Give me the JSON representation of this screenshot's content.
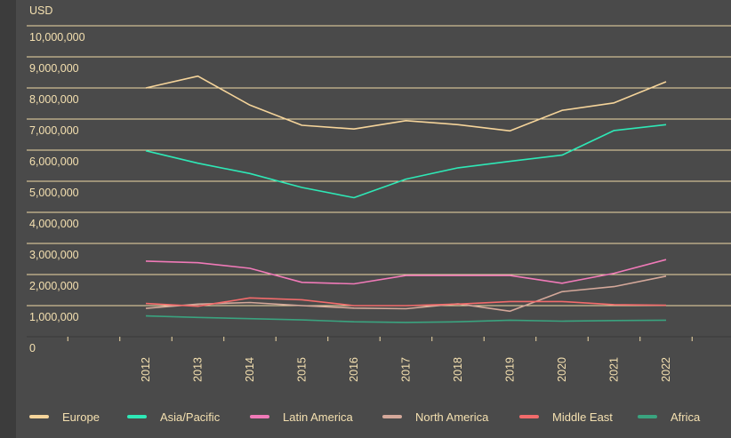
{
  "chart_data": {
    "type": "line",
    "unit_label": "USD",
    "x": [
      "2012",
      "2013",
      "2014",
      "2015",
      "2016",
      "2017",
      "2018",
      "2019",
      "2020",
      "2021",
      "2022"
    ],
    "y_ticks": [
      "0",
      "1,000,000",
      "2,000,000",
      "3,000,000",
      "4,000,000",
      "5,000,000",
      "6,000,000",
      "7,000,000",
      "8,000,000",
      "9,000,000",
      "10,000,000"
    ],
    "ylim": [
      0,
      10000000
    ],
    "grid": true,
    "legend_position": "bottom",
    "series": [
      {
        "name": "Europe",
        "color": "#f5d49a",
        "values": [
          8000000,
          8380000,
          7450000,
          6800000,
          6680000,
          6950000,
          6820000,
          6620000,
          7280000,
          7520000,
          8200000
        ]
      },
      {
        "name": "Asia/Pacific",
        "color": "#2ee8b6",
        "values": [
          5980000,
          5580000,
          5250000,
          4800000,
          4470000,
          5070000,
          5430000,
          5640000,
          5840000,
          6630000,
          6820000
        ]
      },
      {
        "name": "Latin America",
        "color": "#f07ab8",
        "values": [
          2430000,
          2380000,
          2200000,
          1750000,
          1700000,
          1970000,
          1970000,
          1970000,
          1720000,
          2040000,
          2480000
        ]
      },
      {
        "name": "North America",
        "color": "#d4a89a",
        "values": [
          910000,
          1050000,
          1100000,
          1000000,
          920000,
          900000,
          1060000,
          820000,
          1450000,
          1610000,
          1950000
        ]
      },
      {
        "name": "Middle East",
        "color": "#f26b6b",
        "values": [
          1070000,
          980000,
          1250000,
          1190000,
          1000000,
          1000000,
          1050000,
          1130000,
          1130000,
          1030000,
          1010000
        ]
      },
      {
        "name": "Africa",
        "color": "#3aa37f",
        "values": [
          670000,
          620000,
          580000,
          540000,
          480000,
          460000,
          480000,
          530000,
          500000,
          520000,
          530000
        ]
      }
    ]
  }
}
